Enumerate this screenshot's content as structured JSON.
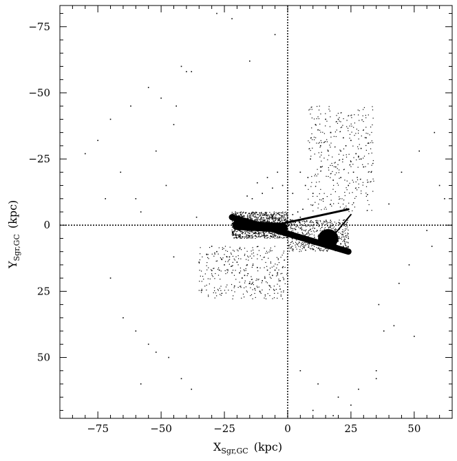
{
  "chart_data": {
    "type": "scatter",
    "title": "",
    "xlabel": {
      "main": "X",
      "sub": "Sgr,GC",
      "unit": "(kpc)"
    },
    "ylabel": {
      "main": "Y",
      "sub": "Sgr,GC",
      "unit": "(kpc)"
    },
    "xlim": [
      -90,
      65
    ],
    "ylim": [
      -83,
      73
    ],
    "y_inverted": true,
    "x_ticks": [
      -75,
      -50,
      -25,
      0,
      25,
      50
    ],
    "x_tick_labels": [
      "−75",
      "−50",
      "−25",
      "0",
      "25",
      "50"
    ],
    "y_ticks": [
      -75,
      -50,
      -25,
      0,
      25,
      50
    ],
    "y_tick_labels": [
      "−75",
      "−50",
      "−25",
      "0",
      "25",
      "50"
    ],
    "reference_lines": {
      "x": 0,
      "y": 0,
      "style": "dotted"
    },
    "grid": false,
    "legend": "none",
    "marker_color": "#000000",
    "series": [
      {
        "points_description_sample": true,
        "x": [
          -20,
          -18,
          -16,
          -14,
          -12,
          -10,
          -8,
          -6,
          -4,
          -2,
          0,
          2,
          4,
          6,
          -22,
          -19,
          -15,
          -11,
          -7,
          -3,
          1,
          5,
          -17,
          -13,
          -9,
          -5,
          -1,
          3,
          8,
          10,
          12,
          14,
          16,
          18,
          20,
          22,
          24,
          11,
          13,
          15,
          17,
          19,
          21,
          9,
          14,
          18,
          23,
          -28,
          -24,
          -20,
          -16,
          -12,
          -8,
          -4,
          -30,
          -26,
          -22,
          -18,
          -14,
          -10,
          -6,
          -2,
          -32,
          -27,
          -21,
          -17,
          -13,
          -9,
          -5,
          -35,
          -25,
          -15,
          -19,
          -11,
          -23,
          -7,
          -3,
          -14,
          -10,
          -6,
          -2,
          2,
          -12,
          -8,
          -4,
          0,
          -16,
          5,
          9,
          13,
          17,
          21,
          25,
          29,
          33,
          11,
          15,
          19,
          23,
          27,
          31,
          7,
          13,
          17,
          21,
          25,
          29,
          10,
          16,
          20,
          24,
          28,
          32,
          8,
          14,
          22,
          26,
          30,
          12,
          18,
          -75,
          -70,
          -62,
          -55,
          -48,
          -40,
          -66,
          -58,
          -52,
          -44,
          -80,
          -36,
          -60,
          -45,
          -38,
          -72,
          -50,
          -42,
          40,
          45,
          52,
          58,
          60,
          55,
          48,
          36,
          42,
          50,
          35,
          62,
          44,
          38,
          57,
          -65,
          -55,
          -47,
          -58,
          -42,
          -38,
          -70,
          -52,
          -60,
          -45,
          5,
          12,
          20,
          28,
          35,
          10,
          25,
          18,
          -5,
          -15,
          -28,
          -22
        ],
        "y": [
          -3,
          -2,
          -1,
          -2,
          0,
          1,
          -1,
          0,
          -1,
          0,
          -3,
          -4,
          -5,
          -6,
          -2,
          2,
          -3,
          2,
          3,
          1,
          -2,
          -3,
          0,
          3,
          -2,
          4,
          1,
          -1,
          5,
          6,
          6,
          7,
          8,
          7,
          9,
          8,
          5,
          7,
          4,
          6,
          5,
          8,
          7,
          5,
          8,
          6,
          4,
          10,
          12,
          14,
          15,
          16,
          17,
          18,
          8,
          13,
          18,
          20,
          22,
          21,
          19,
          16,
          11,
          17,
          23,
          19,
          24,
          20,
          17,
          14,
          15,
          22,
          18,
          25,
          12,
          23,
          21,
          -10,
          -12,
          -14,
          -15,
          -12,
          -16,
          -18,
          -20,
          -13,
          -11,
          -20,
          -25,
          -30,
          -35,
          -28,
          -32,
          -25,
          -20,
          -38,
          -40,
          -22,
          -30,
          -27,
          -33,
          -15,
          -22,
          -35,
          -18,
          -24,
          -29,
          -12,
          -28,
          -40,
          -15,
          -26,
          -31,
          -18,
          -10,
          -33,
          -20,
          -22,
          -36,
          -17,
          -32,
          -40,
          -45,
          -52,
          -15,
          -58,
          -20,
          -5,
          -28,
          -45,
          -27,
          -3,
          -10,
          -38,
          -58,
          -10,
          -48,
          -60,
          -8,
          -20,
          -28,
          -35,
          -15,
          2,
          15,
          30,
          38,
          42,
          55,
          -10,
          22,
          40,
          8,
          35,
          45,
          50,
          60,
          58,
          62,
          20,
          48,
          40,
          12,
          55,
          60,
          65,
          62,
          58,
          70,
          68,
          72,
          -72,
          -62,
          -80,
          -78
        ],
        "dense_regions": [
          {
            "description": "dense core of Sgr dwarf",
            "center": [
              16,
              5
            ],
            "extent": "circular blob radius ~4 kpc"
          },
          {
            "description": "dense leading/trailing streak",
            "from": [
              -22,
              -3
            ],
            "to": [
              24,
              10
            ]
          },
          {
            "description": "dense band",
            "from": [
              -20,
              0
            ],
            "to": [
              -2,
              1
            ]
          },
          {
            "description": "thin tidal tails (wedge)",
            "from": [
              -5,
              0
            ],
            "to": [
              24,
              -6
            ]
          },
          {
            "description": "thin line",
            "from": [
              18,
              4
            ],
            "to": [
              25,
              -4
            ]
          }
        ]
      }
    ]
  }
}
